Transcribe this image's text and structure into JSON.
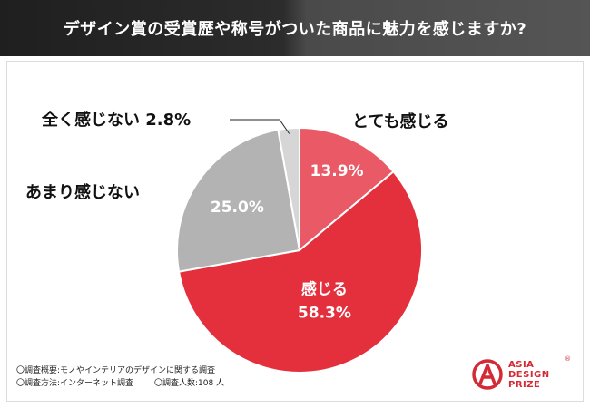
{
  "header": {
    "title": "デザイン賞の受賞歴や称号がついた商品に魅力を感じますか?"
  },
  "colors": {
    "header_bg": "#2a2a2a",
    "accent_red": "#e3303c",
    "light_red": "#ea5a66",
    "gray": "#b3b3b3",
    "light_gray": "#d6d6d6"
  },
  "chart_data": {
    "type": "pie",
    "start": "top",
    "direction": "clockwise",
    "slices": [
      {
        "label": "とても感じる",
        "value": 13.9,
        "value_label": "13.9%",
        "color": "#ea5a66"
      },
      {
        "label": "感じる",
        "value": 58.3,
        "value_label": "58.3%",
        "color": "#e3303c"
      },
      {
        "label": "あまり感じない",
        "value": 25.0,
        "value_label": "25.0%",
        "color": "#b3b3b3"
      },
      {
        "label": "全く感じない",
        "value": 2.8,
        "value_label": "2.8%",
        "color": "#d6d6d6"
      }
    ]
  },
  "footer": {
    "line1": "〇調査概要:モノやインテリアのデザインに関する調査",
    "line2_method": "〇調査方法:インターネット調査",
    "line2_count": "〇調査人数:108 人"
  },
  "logo": {
    "line1": "ASIA",
    "line2": "DESIGN",
    "line3": "PRIZE",
    "registered": "®",
    "icon": "asia-design-prize-logo-icon"
  }
}
